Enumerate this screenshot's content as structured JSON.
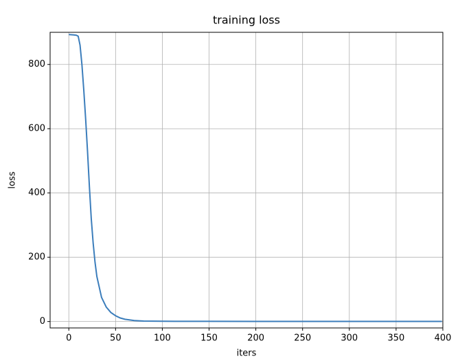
{
  "chart_data": {
    "type": "line",
    "title": "training loss",
    "x_label": "iters",
    "y_label": "loss",
    "x": [
      0,
      5,
      8,
      10,
      12,
      14,
      16,
      18,
      20,
      22,
      24,
      26,
      28,
      30,
      35,
      40,
      45,
      50,
      55,
      60,
      70,
      80,
      100,
      150,
      200,
      250,
      300,
      350,
      399
    ],
    "series": [
      {
        "name": "loss",
        "color": "#3b7dbb",
        "values": [
          893,
          892,
          891,
          888,
          860,
          800,
          720,
          630,
          530,
          420,
          320,
          245,
          185,
          140,
          75,
          45,
          28,
          18,
          11,
          7,
          3,
          1.5,
          0.8,
          0.5,
          0.4,
          0.3,
          0.3,
          0.3,
          0.3
        ]
      }
    ],
    "xlim": [
      -20,
      400
    ],
    "xticks": [
      0,
      50,
      100,
      150,
      200,
      250,
      300,
      350,
      400
    ],
    "ylim": [
      -20,
      900
    ],
    "yticks": [
      0,
      200,
      400,
      600,
      800
    ],
    "grid": true
  }
}
